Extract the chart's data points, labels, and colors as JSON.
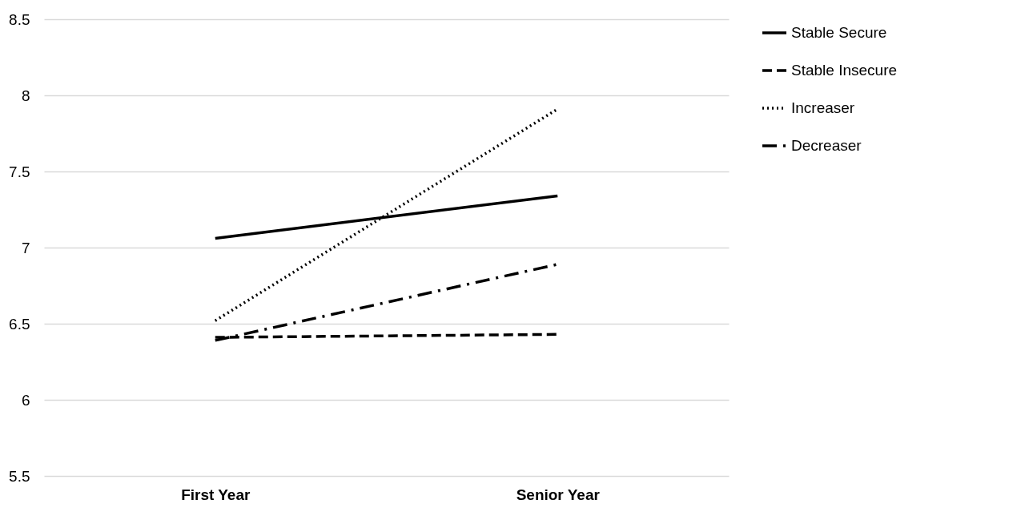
{
  "chart_data": {
    "type": "line",
    "categories": [
      "First Year",
      "Senior Year"
    ],
    "series": [
      {
        "name": "Stable Secure",
        "color": "#000000",
        "line_style": "solid",
        "values": [
          7.06,
          7.34
        ]
      },
      {
        "name": "Stable Insecure",
        "color": "#000000",
        "line_style": "dashed",
        "values": [
          6.41,
          6.43
        ]
      },
      {
        "name": "Increaser",
        "color": "#000000",
        "line_style": "dotted",
        "values": [
          6.52,
          7.91
        ]
      },
      {
        "name": "Decreaser",
        "color": "#000000",
        "line_style": "dashdot",
        "values": [
          6.39,
          6.89
        ]
      }
    ],
    "ylim": [
      5.5,
      8.5
    ],
    "yticks": [
      5.5,
      6,
      6.5,
      7,
      7.5,
      8,
      8.5
    ],
    "grid": "y",
    "legend": "right",
    "marker": "none"
  }
}
